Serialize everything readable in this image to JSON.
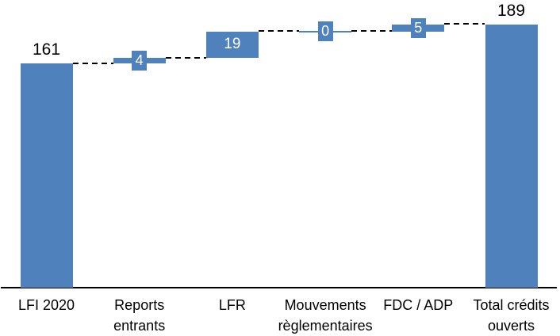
{
  "page": {
    "background": "#FFFFFF"
  },
  "chart_data": {
    "type": "bar",
    "subtype": "waterfall",
    "title": "",
    "xlabel": "",
    "ylabel": "",
    "legend": "none",
    "gridlines": false,
    "ylim": [
      0,
      200
    ],
    "categories": [
      "LFI 2020",
      "Reports entrants",
      "LFR",
      "Mouvements règlementaires",
      "FDC / ADP",
      "Total crédits ouverts"
    ],
    "steps": [
      {
        "label": "LFI 2020",
        "value": 161,
        "display": "161",
        "kind": "total",
        "label_pos": "above"
      },
      {
        "label": "Reports entrants",
        "value": 4,
        "display": "4",
        "kind": "delta",
        "label_pos": "box"
      },
      {
        "label": "LFR",
        "value": 19,
        "display": "19",
        "kind": "delta",
        "label_pos": "inside"
      },
      {
        "label": "Mouvements règlementaires",
        "value": 0,
        "display": "0",
        "kind": "delta",
        "label_pos": "box"
      },
      {
        "label": "FDC / ADP",
        "value": 5,
        "display": "5",
        "kind": "delta",
        "label_pos": "box"
      },
      {
        "label": "Total crédits ouverts",
        "value": 189,
        "display": "189",
        "kind": "total",
        "label_pos": "above"
      }
    ],
    "cumulative": [
      161,
      165,
      184,
      184,
      189,
      189
    ],
    "connector_style": "dashed",
    "colors": {
      "bar": "#4F81BD",
      "inside_label_text": "#FFFFFF",
      "outside_label_text": "#000000",
      "connector": "#000000",
      "axis_line": "#000000",
      "category_text": "#000000"
    }
  }
}
